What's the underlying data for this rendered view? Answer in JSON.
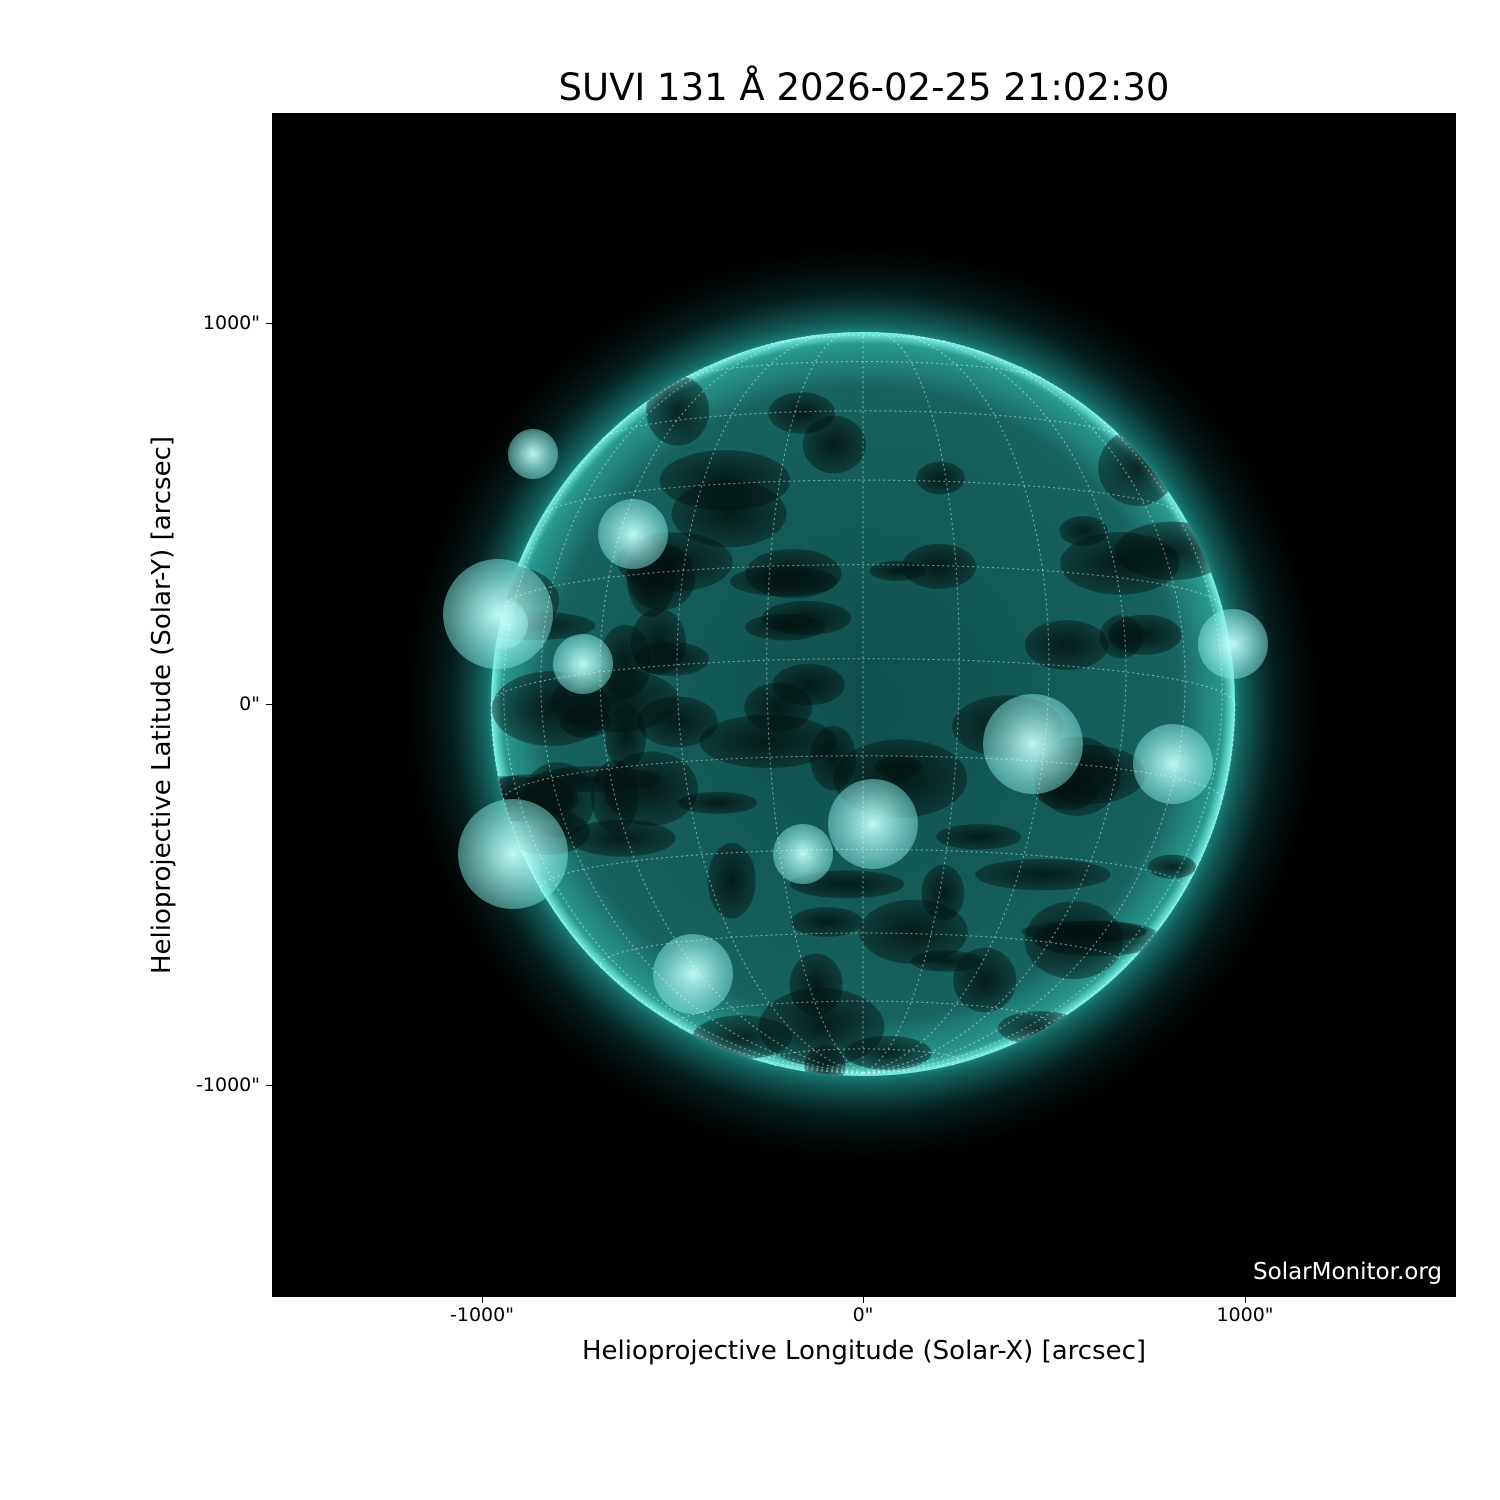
{
  "title": "SUVI 131 Å 2026-02-25 21:02:30",
  "x_axis": {
    "label": "Helioprojective Longitude (Solar-X) [arcsec]",
    "ticks": [
      "-1000\"",
      "0\"",
      "1000\""
    ],
    "tick_values": [
      -1000,
      0,
      1000
    ]
  },
  "y_axis": {
    "label": "Helioprojective Latitude (Solar-Y) [arcsec]",
    "ticks": [
      "1000\"",
      "0\"",
      "-1000\""
    ],
    "tick_values": [
      1000,
      0,
      -1000
    ]
  },
  "watermark": "SolarMonitor.org",
  "image": {
    "subject": "solar disk",
    "colormap": "teal",
    "accent": "#2fd6cc",
    "grid": true,
    "grid_spacing_deg": 15
  }
}
